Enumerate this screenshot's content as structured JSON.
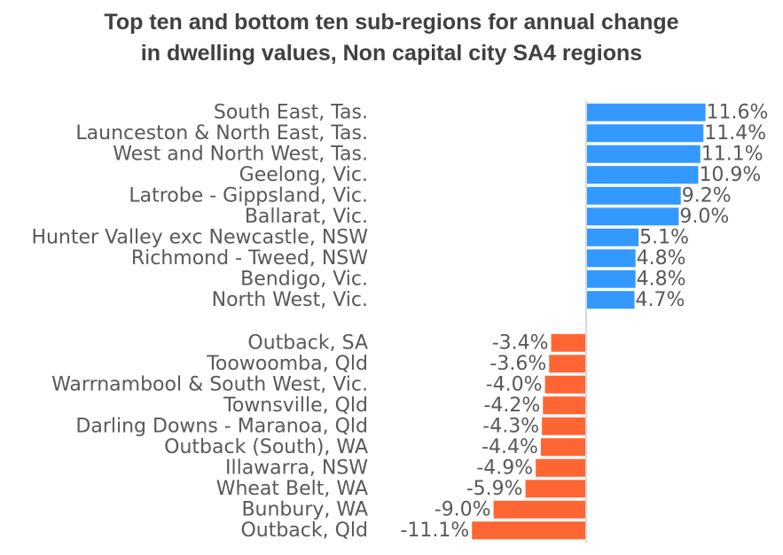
{
  "title_line1": "Top ten and bottom ten sub-regions for annual change",
  "title_line2": "in dwelling values, Non capital city SA4 regions",
  "colors": {
    "positive": "#3399ff",
    "negative": "#ff6633",
    "axis": "#d9d9d9",
    "text": "#595959"
  },
  "chart_data": {
    "type": "bar",
    "orientation": "horizontal",
    "title": "Top ten and bottom ten sub-regions for annual change in dwelling values, Non capital city SA4 regions",
    "xlabel": "",
    "ylabel": "",
    "unit": "%",
    "xlim": [
      -11.1,
      11.6
    ],
    "grid": false,
    "groups": [
      {
        "name": "Top ten",
        "categories": [
          "South East, Tas.",
          "Launceston & North East, Tas.",
          "West and North West, Tas.",
          "Geelong, Vic.",
          "Latrobe - Gippsland, Vic.",
          "Ballarat, Vic.",
          "Hunter Valley exc Newcastle, NSW",
          "Richmond - Tweed, NSW",
          "Bendigo, Vic.",
          "North West, Vic."
        ],
        "values": [
          11.6,
          11.4,
          11.1,
          10.9,
          9.2,
          9.0,
          5.1,
          4.8,
          4.8,
          4.7
        ],
        "labels": [
          "11.6%",
          "11.4%",
          "11.1%",
          "10.9%",
          "9.2%",
          "9.0%",
          "5.1%",
          "4.8%",
          "4.8%",
          "4.7%"
        ]
      },
      {
        "name": "Bottom ten",
        "categories": [
          "Outback, SA",
          "Toowoomba, Qld",
          "Warrnambool & South West, Vic.",
          "Townsville, Qld",
          "Darling Downs - Maranoa, Qld",
          "Outback (South), WA",
          "Illawarra, NSW",
          "Wheat Belt, WA",
          "Bunbury, WA",
          "Outback, Qld"
        ],
        "values": [
          -3.4,
          -3.6,
          -4.0,
          -4.2,
          -4.3,
          -4.4,
          -4.9,
          -5.9,
          -9.0,
          -11.1
        ],
        "labels": [
          "-3.4%",
          "-3.6%",
          "-4.0%",
          "-4.2%",
          "-4.3%",
          "-4.4%",
          "-4.9%",
          "-5.9%",
          "-9.0%",
          "-11.1%"
        ]
      }
    ]
  }
}
